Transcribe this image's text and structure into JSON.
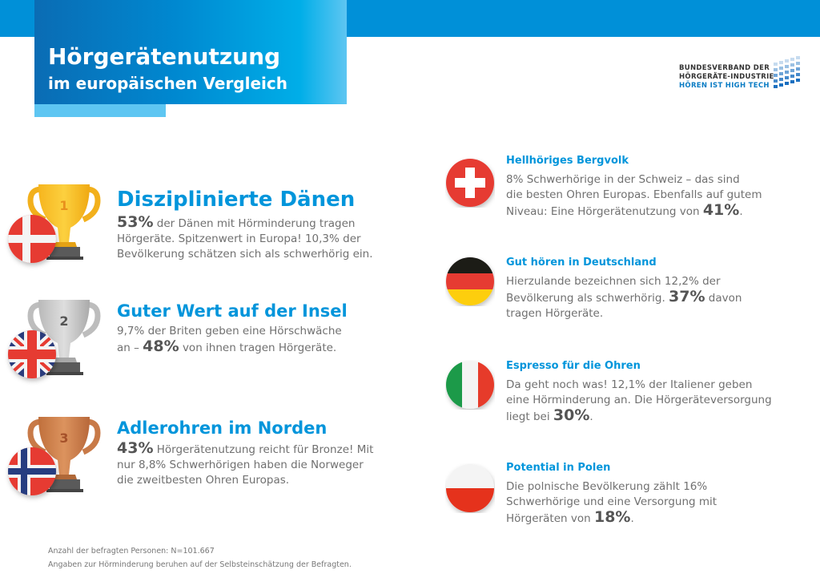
{
  "header": {
    "title_line1": "Hörgerätenutzung",
    "title_line2": "im europäischen Vergleich",
    "colors": {
      "band": "#0090d8",
      "accent_light": "#5ec6f2",
      "heading": "#0095db"
    }
  },
  "logo": {
    "line1": "BUNDESVERBAND DER",
    "line2": "HÖRGERÄTE-INDUSTRIE",
    "line3": "HÖREN IST HIGH TECH"
  },
  "ranked": [
    {
      "rank": "1",
      "country": "Dänemark",
      "trophy": "gold-trophy-icon",
      "heading": "Disziplinierte Dänen",
      "lines": [
        {
          "pre": "",
          "big": "53%",
          "post": " der Dänen mit Hörminderung tragen"
        },
        {
          "pre": "Hörgeräte. Spitzenwert in Europa! 10,3% der",
          "big": "",
          "post": ""
        },
        {
          "pre": "Bevölkerung schätzen sich als schwerhörig ein.",
          "big": "",
          "post": ""
        }
      ]
    },
    {
      "rank": "2",
      "country": "Großbritannien",
      "trophy": "silver-trophy-icon",
      "heading": "Guter Wert auf der Insel",
      "lines": [
        {
          "pre": "9,7% der Briten geben eine Hörschwäche",
          "big": "",
          "post": ""
        },
        {
          "pre": "an – ",
          "big": "48%",
          "post": " von ihnen tragen Hörgeräte."
        }
      ]
    },
    {
      "rank": "3",
      "country": "Norwegen",
      "trophy": "bronze-trophy-icon",
      "heading": "Adlerohren im Norden",
      "lines": [
        {
          "pre": "",
          "big": "43%",
          "post": " Hörgerätenutzung reicht für Bronze! Mit"
        },
        {
          "pre": "nur 8,8% Schwerhörigen haben die Norweger",
          "big": "",
          "post": ""
        },
        {
          "pre": "die zweitbesten Ohren Europas.",
          "big": "",
          "post": ""
        }
      ]
    }
  ],
  "others": [
    {
      "country": "Schweiz",
      "heading": "Hellhöriges Bergvolk",
      "lines": [
        {
          "pre": "8% Schwerhörige in der Schweiz – das sind",
          "big": "",
          "post": ""
        },
        {
          "pre": "die besten Ohren Europas. Ebenfalls auf gutem",
          "big": "",
          "post": ""
        },
        {
          "pre": "Niveau: Eine Hörgerätenutzung von ",
          "big": "41%",
          "post": "."
        }
      ]
    },
    {
      "country": "Deutschland",
      "heading": "Gut hören in Deutschland",
      "lines": [
        {
          "pre": "Hierzulande bezeichnen sich 12,2% der",
          "big": "",
          "post": ""
        },
        {
          "pre": "Bevölkerung als schwerhörig. ",
          "big": "37%",
          "post": " davon"
        },
        {
          "pre": "tragen Hörgeräte.",
          "big": "",
          "post": ""
        }
      ]
    },
    {
      "country": "Italien",
      "heading": "Espresso für die Ohren",
      "lines": [
        {
          "pre": "Da geht noch was! 12,1% der Italiener geben",
          "big": "",
          "post": ""
        },
        {
          "pre": "eine Hörminderung an. Die Hörgeräteversorgung",
          "big": "",
          "post": ""
        },
        {
          "pre": "liegt bei ",
          "big": "30%",
          "post": "."
        }
      ]
    },
    {
      "country": "Polen",
      "heading": "Potential in Polen",
      "lines": [
        {
          "pre": "Die polnische Bevölkerung zählt 16%",
          "big": "",
          "post": ""
        },
        {
          "pre": "Schwerhörige und eine Versorgung mit",
          "big": "",
          "post": ""
        },
        {
          "pre": "Hörgeräten von ",
          "big": "18%",
          "post": "."
        }
      ]
    }
  ],
  "footnotes": {
    "line1": "Anzahl der befragten Personen: N=101.667",
    "line2": "Angaben zur Hörminderung beruhen auf der Selbsteinschätzung der Befragten."
  }
}
